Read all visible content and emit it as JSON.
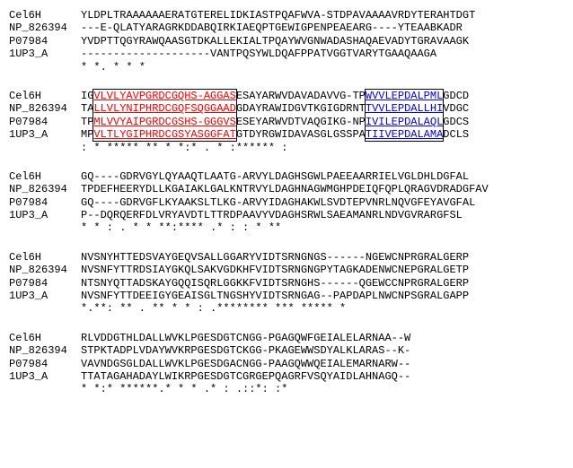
{
  "labels": [
    "Cel6H",
    "NP_826394",
    "P07984",
    "1UP3_A"
  ],
  "block1": {
    "rows": [
      "YLDPLTRAAAAAAERATGTERELIDKIASTPQAFWVA-STDPAVAAAAVRDYTERAHTDGT",
      "---E-QLATYARAGRKDDABQIRKIAEQPTGEWIGPENPEAEARG----YTEAABKADR",
      "YVDPTTQGYRAWQAASGTDKALLEKIALTPQAYWVGNWADASHAQAEVADYTGRAVAAGK",
      "--------------------VANTPQSYWLDQAFPPATVGGTVARYTGAAQAAGA"
    ],
    "cons": "                            *    *.               *  * *    "
  },
  "block2": {
    "rows": [
      {
        "pre": "IG",
        "box1": "VLVLYAVPGRDCGQHS-AGGAS",
        "mid": "ESAYARWVDAVADAVVG-TP",
        "box2": "WVVLEPDALPML",
        "post": "GDCD"
      },
      {
        "pre": "TA",
        "box1": "LLVLYNIPHRDCGQFSQGGAAD",
        "mid": "GDAYRAWIDGVTKGIGDRNT",
        "box2": "TVVLEPDALLHI",
        "post": "VDGC"
      },
      {
        "pre": "TP",
        "box1": "MLVVYAIPGRDCGSHS-GGGVS",
        "mid": "ESEYARWVDTVAQGIKG-NP",
        "box2": "IVILEPDALAQL",
        "post": "GDCS"
      },
      {
        "pre": "MP",
        "box1": "VLTLYGIPHRDCGSYASGGFAT",
        "mid": "GTDYRGWIDAVASGLGSSPA",
        "box2": "TIIVEPDALAMA",
        "post": "DCLS"
      }
    ],
    "cons": "    :  * *****    **      *  *:*          . *  :******     : "
  },
  "block3": {
    "rows": [
      "GQ----GDRVGYLQYAAQTLAATG-ARVYLDAGHSGWLPAEEAARRIELVGLDHLDGFAL",
      "TPDEFHEERYDLLKGAIAKLGALKNTRVYLDAGHNAGWMGHPDEIQFQPLQRAGVDRADGFAV",
      "GQ----GDRVGFLKYAAKSLTLKG-ARVYIDAGHAKWLSVDTEPVNRLNQVGFEYAVGFAL",
      "P--DQRQERFDLVRYAVDTLTTRDPAAVYVDAGHSRWLSAEAMANRLNDVGVRARGFSL"
    ],
    "cons": "       * *  : . *      *  **:**** .*      :   :  *    ** "
  },
  "block4": {
    "rows": [
      "NVSNYHTTEDSVAYGEQVSALLGGARYVIDTSRNGNGS------NGEWCNPRGRALGERP",
      "NVSNFYTTRDSIAYGKQLSAKVGDKHFVIDTSRNGNGPYTAGKADENWCNEPGRALGETP",
      "NTSNYQTTADSKAYGQQISQRLGGKKFVIDTSRNGHS------QGEWCCNPRGRALGERP",
      "NVSNFYTTDEEIGYGEAISGLTNGSHYVIDTSRNGAG--PAPDAPLNWCNPSGRALGAPP"
    ],
    "cons": "*.**: **  .  **   *    * : .********            *** ***** *"
  },
  "block5": {
    "rows": [
      "RLVDDGTHLDALLWVKLPGESDGTCNGG-PGAGQWFGEIALELARNAA--W",
      "STPKTADPLVDAYWVKRPGESDGTCKGG-PKAGEWWSDYALKLARAS--K-",
      "VAVNDGSGLDALLWVKLPGESDGACNGG-PAAGQWWQEIALEMARNARW--",
      "TTATAGAHADAYLWIKRPGESDGTCGRGEPQAGRFVSQYAIDLAHNAGQ--"
    ],
    "cons": "          *  *:* ******.* * * .* : .::*: :*       "
  },
  "styles": {
    "box1_color": "#ff0000",
    "box2_color": "#0000ff",
    "underline": true
  }
}
